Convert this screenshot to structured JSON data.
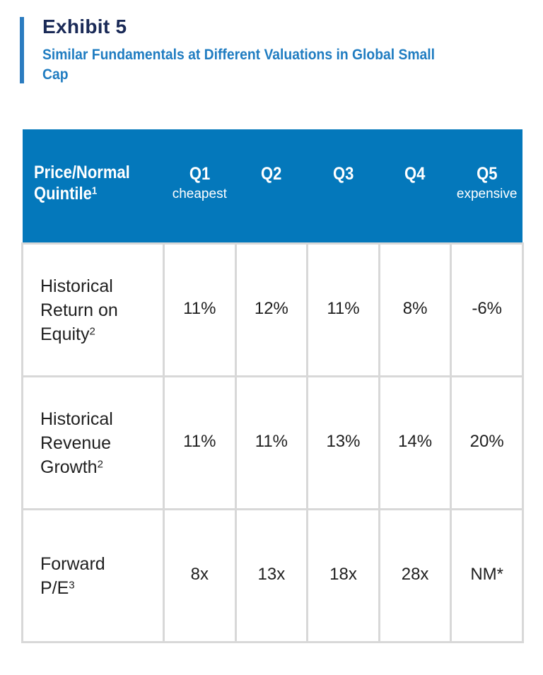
{
  "exhibit": {
    "label": "Exhibit 5",
    "title": "Similar Fundamentals at Different Valuations in Global Small Cap",
    "accent_color": "#2b7cc0",
    "header_color": "#0478bb"
  },
  "table": {
    "header": {
      "first": {
        "line1": "Price/Normal",
        "line2": "Quintile",
        "footnote": "1"
      },
      "quintiles": [
        {
          "label": "Q1",
          "sub": "cheapest"
        },
        {
          "label": "Q2",
          "sub": ""
        },
        {
          "label": "Q3",
          "sub": ""
        },
        {
          "label": "Q4",
          "sub": ""
        },
        {
          "label": "Q5",
          "sub": "expensive"
        }
      ]
    },
    "rows": [
      {
        "label_lines": [
          "Historical",
          "Return on",
          "Equity"
        ],
        "footnote": "2",
        "values": [
          "11%",
          "12%",
          "11%",
          "8%",
          "-6%"
        ]
      },
      {
        "label_lines": [
          "Historical",
          "Revenue",
          "Growth"
        ],
        "footnote": "2",
        "values": [
          "11%",
          "11%",
          "13%",
          "14%",
          "20%"
        ]
      },
      {
        "label_lines": [
          "Forward",
          "P/E"
        ],
        "footnote": "3",
        "values": [
          "8x",
          "13x",
          "18x",
          "28x",
          "NM*"
        ]
      }
    ]
  }
}
